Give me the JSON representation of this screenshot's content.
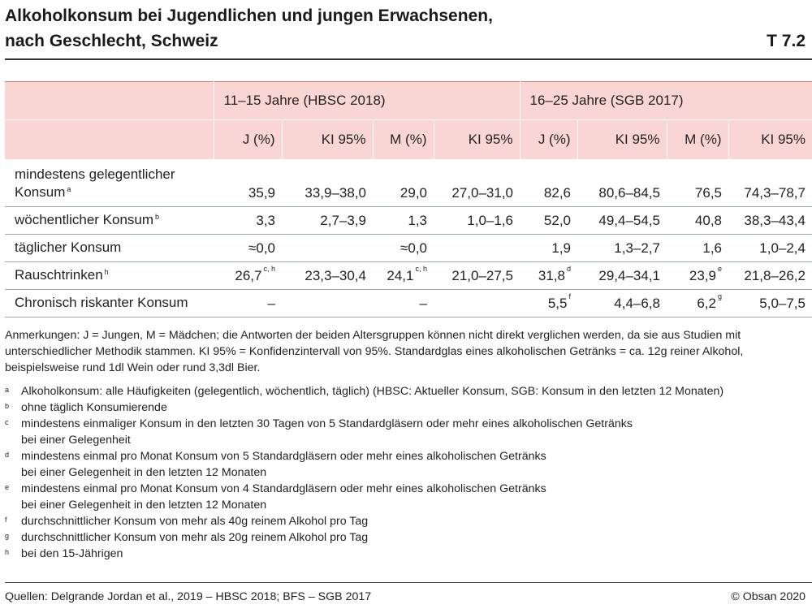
{
  "header": {
    "title_line1": "Alkoholkonsum bei Jugendlichen und jungen Erwachsenen,",
    "title_line2": "nach Geschlecht, Schweiz",
    "table_id": "T 7.2"
  },
  "table": {
    "group1": "11–15 Jahre (HBSC 2018)",
    "group2": "16–25 Jahre (SGB 2017)",
    "columns": [
      "J (%)",
      "KI 95%",
      "M (%)",
      "KI 95%",
      "J (%)",
      "KI 95%",
      "M (%)",
      "KI 95%"
    ],
    "rows": [
      {
        "label_line1": "mindestens gelegentlicher",
        "label_line2": "Konsum",
        "label_sup": "a",
        "cells": [
          {
            "v": "35,9",
            "s": ""
          },
          {
            "v": "33,9–38,0",
            "s": ""
          },
          {
            "v": "29,0",
            "s": ""
          },
          {
            "v": "27,0–31,0",
            "s": ""
          },
          {
            "v": "82,6",
            "s": ""
          },
          {
            "v": "80,6–84,5",
            "s": ""
          },
          {
            "v": "76,5",
            "s": ""
          },
          {
            "v": "74,3–78,7",
            "s": ""
          }
        ]
      },
      {
        "label": "wöchentlicher Konsum",
        "label_sup": "b",
        "cells": [
          {
            "v": "3,3",
            "s": ""
          },
          {
            "v": "2,7–3,9",
            "s": ""
          },
          {
            "v": "1,3",
            "s": ""
          },
          {
            "v": "1,0–1,6",
            "s": ""
          },
          {
            "v": "52,0",
            "s": ""
          },
          {
            "v": "49,4–54,5",
            "s": ""
          },
          {
            "v": "40,8",
            "s": ""
          },
          {
            "v": "38,3–43,4",
            "s": ""
          }
        ]
      },
      {
        "label": "täglicher Konsum",
        "label_sup": "",
        "cells": [
          {
            "v": "≈0,0",
            "s": ""
          },
          {
            "v": "",
            "s": ""
          },
          {
            "v": "≈0,0",
            "s": ""
          },
          {
            "v": "",
            "s": ""
          },
          {
            "v": "1,9",
            "s": ""
          },
          {
            "v": "1,3–2,7",
            "s": ""
          },
          {
            "v": "1,6",
            "s": ""
          },
          {
            "v": "1,0–2,4",
            "s": ""
          }
        ]
      },
      {
        "label": "Rauschtrinken",
        "label_sup": "h",
        "cells": [
          {
            "v": "26,7",
            "s": "c, h"
          },
          {
            "v": "23,3–30,4",
            "s": ""
          },
          {
            "v": "24,1",
            "s": "c, h"
          },
          {
            "v": "21,0–27,5",
            "s": ""
          },
          {
            "v": "31,8",
            "s": "d"
          },
          {
            "v": "29,4–34,1",
            "s": ""
          },
          {
            "v": "23,9",
            "s": "e"
          },
          {
            "v": "21,8–26,2",
            "s": ""
          }
        ]
      },
      {
        "label": "Chronisch riskanter Konsum",
        "label_sup": "",
        "cells": [
          {
            "v": "–",
            "s": ""
          },
          {
            "v": "",
            "s": ""
          },
          {
            "v": "–",
            "s": ""
          },
          {
            "v": "",
            "s": ""
          },
          {
            "v": "5,5",
            "s": "f"
          },
          {
            "v": "4,4–6,8",
            "s": ""
          },
          {
            "v": "6,2",
            "s": "g"
          },
          {
            "v": "5,0–7,5",
            "s": ""
          }
        ]
      }
    ]
  },
  "notes": "Anmerkungen: J = Jungen, M = Mädchen; die Antworten der beiden Altersgruppen können nicht direkt verglichen werden, da sie aus Studien mit unterschiedlicher Methodik stammen. KI 95% = Konfidenzintervall von 95%. Standardglas eines alkoholischen Getränks = ca. 12g reiner Alkohol, beispielsweise rund 1dl Wein oder rund 3,3dl Bier.",
  "footnotes": [
    {
      "mark": "a",
      "lines": [
        "Alkoholkonsum: alle Häufigkeiten (gelegentlich, wöchentlich, täglich) (HBSC: Aktueller Konsum, SGB: Konsum in den letzten 12 Monaten)"
      ]
    },
    {
      "mark": "b",
      "lines": [
        "ohne täglich Konsumierende"
      ]
    },
    {
      "mark": "c",
      "lines": [
        "mindestens einmaliger Konsum in den letzten 30 Tagen von 5 Standardgläsern oder mehr eines alkoholischen Getränks",
        "bei einer Gelegenheit"
      ]
    },
    {
      "mark": "d",
      "lines": [
        "mindestens einmal pro Monat Konsum von 5 Standardgläsern oder mehr eines alkoholischen Getränks",
        "bei einer Gelegenheit in den letzten 12 Monaten"
      ]
    },
    {
      "mark": "e",
      "lines": [
        "mindestens einmal pro Monat Konsum von 4 Standardgläsern oder mehr eines alkoholischen Getränks",
        "bei einer Gelegenheit in den letzten 12 Monaten"
      ]
    },
    {
      "mark": "f",
      "lines": [
        "durchschnittlicher Konsum von mehr als 40g reinem Alkohol pro Tag"
      ]
    },
    {
      "mark": "g",
      "lines": [
        "durchschnittlicher Konsum von mehr als 20g reinem Alkohol pro Tag"
      ]
    },
    {
      "mark": "h",
      "lines": [
        "bei den 15-Jährigen"
      ]
    }
  ],
  "footer": {
    "source": "Quellen: Delgrande Jordan et al., 2019 – HBSC 2018; BFS – SGB 2017",
    "copyright": "© Obsan 2020"
  },
  "colors": {
    "header_band": "#f9d6d4",
    "band_rule": "#d08080"
  }
}
